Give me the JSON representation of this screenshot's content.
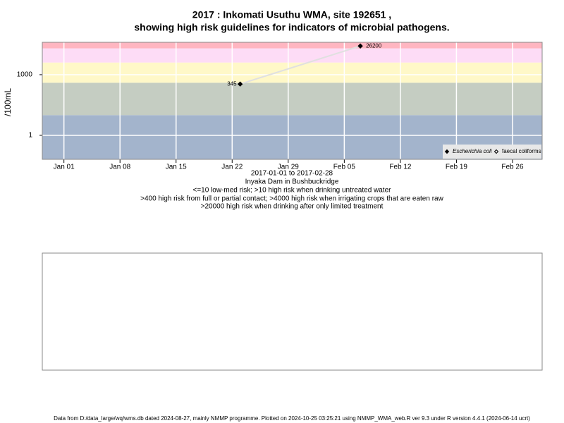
{
  "chart_data": {
    "type": "line",
    "title": "2017 : Inkomati Usuthu WMA, site 192651 ,",
    "subtitle": "showing high risk guidelines for indicators of microbial pathogens.",
    "ylabel": "/100mL",
    "log_y": true,
    "x": [
      23,
      38
    ],
    "series": [
      {
        "name": "Escherichia coli",
        "color": "#000000",
        "line_color": "#e0e0e0",
        "values": [
          345,
          26200
        ]
      },
      {
        "name": "faecal coliforms",
        "color": "#000000",
        "values": [
          null,
          null
        ]
      }
    ],
    "xlim": [
      -1.7,
      60.7
    ],
    "xticks": [
      {
        "value": 1,
        "label": "Jan 01"
      },
      {
        "value": 8,
        "label": "Jan 08"
      },
      {
        "value": 15,
        "label": "Jan 15"
      },
      {
        "value": 22,
        "label": "Jan 22"
      },
      {
        "value": 29,
        "label": "Jan 29"
      },
      {
        "value": 36,
        "label": "Feb 05"
      },
      {
        "value": 43,
        "label": "Feb 12"
      },
      {
        "value": 50,
        "label": "Feb 19"
      },
      {
        "value": 57,
        "label": "Feb 26"
      }
    ],
    "ylim": [
      0.065,
      40000
    ],
    "yticks": [
      1,
      1000
    ],
    "grid": true,
    "guidelines": [
      10,
      400,
      4000,
      20000
    ],
    "band_colors": [
      "#a3b4cc",
      "#c5cdc2",
      "#fff8c8",
      "#fddcf6",
      "#ffb6c1"
    ],
    "legend": "bottom-right",
    "notes": [
      "2017-01-01 to 2017-02-28",
      "Inyaka Dam in Bushbuckridge",
      "<=10 low-med risk; >10 high risk when drinking untreated water",
      ">400 high risk from full or partial contact; >4000 high risk when irrigating crops that are eaten raw",
      ">20000 high risk when drinking after only limited treatment"
    ],
    "footer": "Data from D:/data_large/wq/wms.db dated 2024-08-27, mainly NMMP programme. Plotted on 2024-10-25 03:25:21 using NMMP_WMA_web.R ver 9.3 under R version 4.4.1 (2024-06-14 ucrt)"
  }
}
